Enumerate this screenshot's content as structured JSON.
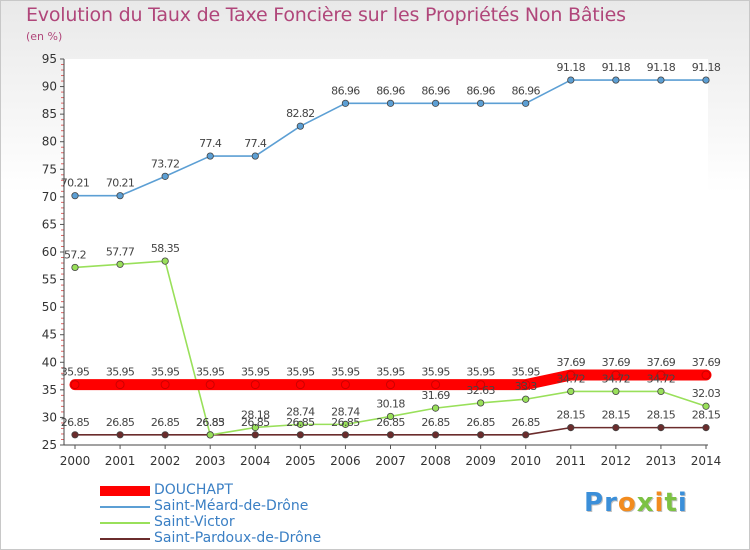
{
  "title": "Evolution du Taux de Taxe Foncière sur les Propriétés Non Bâties",
  "ylabel": "(en %)",
  "logo_text": "Proxiti",
  "chart_data": {
    "type": "line",
    "title": "Evolution du Taux de Taxe Foncière sur les Propriétés Non Bâties",
    "ylabel": "(en %)",
    "xlabel": "",
    "ylim": [
      25,
      95
    ],
    "yticks": [
      "25",
      "30",
      "35",
      "40",
      "45",
      "50",
      "55",
      "60",
      "65",
      "70",
      "75",
      "80",
      "85",
      "90",
      "95"
    ],
    "categories": [
      "2000",
      "2001",
      "2002",
      "2003",
      "2004",
      "2005",
      "2006",
      "2007",
      "2008",
      "2009",
      "2010",
      "2011",
      "2012",
      "2013",
      "2014"
    ],
    "legend_position": "bottom-left",
    "series": [
      {
        "name": "DOUCHAPT",
        "color": "#ff0000",
        "values": [
          35.95,
          35.95,
          35.95,
          35.95,
          35.95,
          35.95,
          35.95,
          35.95,
          35.95,
          35.95,
          35.95,
          37.69,
          37.69,
          37.69,
          37.69
        ],
        "labels": [
          "35.95",
          "35.95",
          "35.95",
          "35.95",
          "35.95",
          "35.95",
          "35.95",
          "35.95",
          "35.95",
          "35.95",
          "35.95",
          "37.69",
          "37.69",
          "37.69",
          "37.69"
        ]
      },
      {
        "name": "Saint-Méard-de-Drône",
        "color": "#5c9fd4",
        "values": [
          70.21,
          70.21,
          73.72,
          77.4,
          77.4,
          82.82,
          86.96,
          86.96,
          86.96,
          86.96,
          86.96,
          91.18,
          91.18,
          91.18,
          91.18
        ],
        "labels": [
          "70.21",
          "70.21",
          "73.72",
          "77.4",
          "77.4",
          "82.82",
          "86.96",
          "86.96",
          "86.96",
          "86.96",
          "86.96",
          "91.18",
          "91.18",
          "91.18",
          "91.18"
        ]
      },
      {
        "name": "Saint-Victor",
        "color": "#99e05a",
        "values": [
          57.2,
          57.77,
          58.35,
          26.83,
          28.18,
          28.74,
          28.74,
          30.18,
          31.69,
          32.63,
          33.3,
          34.72,
          34.72,
          34.72,
          32.03
        ],
        "labels": [
          "57.2",
          "57.77",
          "58.35",
          "26.83",
          "28.18",
          "28.74",
          "28.74",
          "30.18",
          "31.69",
          "32.63",
          "33.3",
          "34.72",
          "34.72",
          "34.72",
          "32.03"
        ]
      },
      {
        "name": "Saint-Pardoux-de-Drône",
        "color": "#6b2c2c",
        "values": [
          26.85,
          26.85,
          26.85,
          26.85,
          26.85,
          26.85,
          26.85,
          26.85,
          26.85,
          26.85,
          26.85,
          28.15,
          28.15,
          28.15,
          28.15
        ],
        "labels": [
          "26.85",
          "26.85",
          "26.85",
          "26.85",
          "26.85",
          "26.85",
          "26.85",
          "26.85",
          "26.85",
          "26.85",
          "26.85",
          "28.15",
          "28.15",
          "28.15",
          "28.15"
        ]
      }
    ]
  }
}
